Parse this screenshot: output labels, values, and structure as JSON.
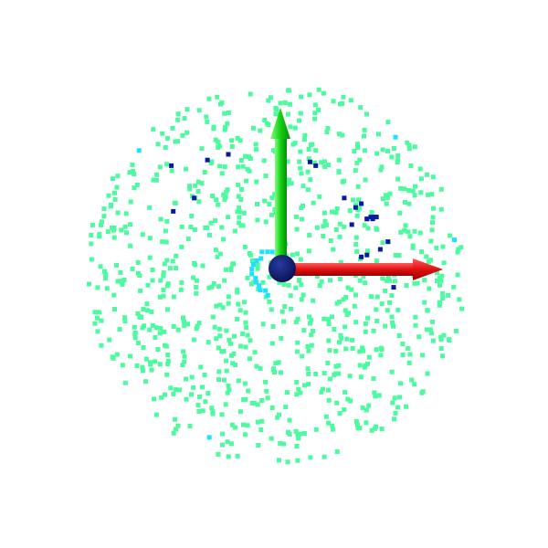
{
  "chart_data": {
    "type": "scatter",
    "grid": false,
    "legend": false,
    "origin_marker_color": "#0b1560",
    "axes": [
      {
        "name": "x-axis",
        "direction": [
          1,
          0
        ],
        "color": "#e01010"
      },
      {
        "name": "y-axis",
        "direction": [
          0,
          1
        ],
        "color": "#12d012"
      }
    ],
    "point_classes": [
      {
        "name": "bulk",
        "color": "#4dfaa0"
      },
      {
        "name": "inner-ring",
        "color": "#1ee0ff"
      },
      {
        "name": "highlighted",
        "color": "#0a1aa0"
      }
    ],
    "xlim": [
      -1,
      1
    ],
    "ylim": [
      -1,
      1
    ],
    "bulk_point_count": 900,
    "bulk_radius": 1.0,
    "inner_ring_radius": 0.12,
    "highlighted_points": [
      [
        -0.55,
        0.57
      ],
      [
        -0.36,
        0.6
      ],
      [
        -0.25,
        0.63
      ],
      [
        -0.43,
        0.4
      ],
      [
        -0.54,
        0.33
      ],
      [
        0.21,
        0.57
      ],
      [
        0.18,
        0.59
      ],
      [
        0.36,
        0.4
      ],
      [
        0.42,
        0.35
      ],
      [
        0.45,
        0.37
      ],
      [
        0.4,
        0.26
      ],
      [
        0.48,
        0.29
      ],
      [
        0.51,
        0.29
      ],
      [
        0.53,
        0.3
      ],
      [
        0.52,
        0.3
      ],
      [
        0.48,
        0.29
      ],
      [
        0.5,
        0.3
      ],
      [
        0.45,
        0.09
      ],
      [
        0.48,
        0.1
      ],
      [
        0.55,
        0.13
      ],
      [
        0.59,
        0.17
      ],
      [
        0.62,
        -0.07
      ]
    ]
  }
}
